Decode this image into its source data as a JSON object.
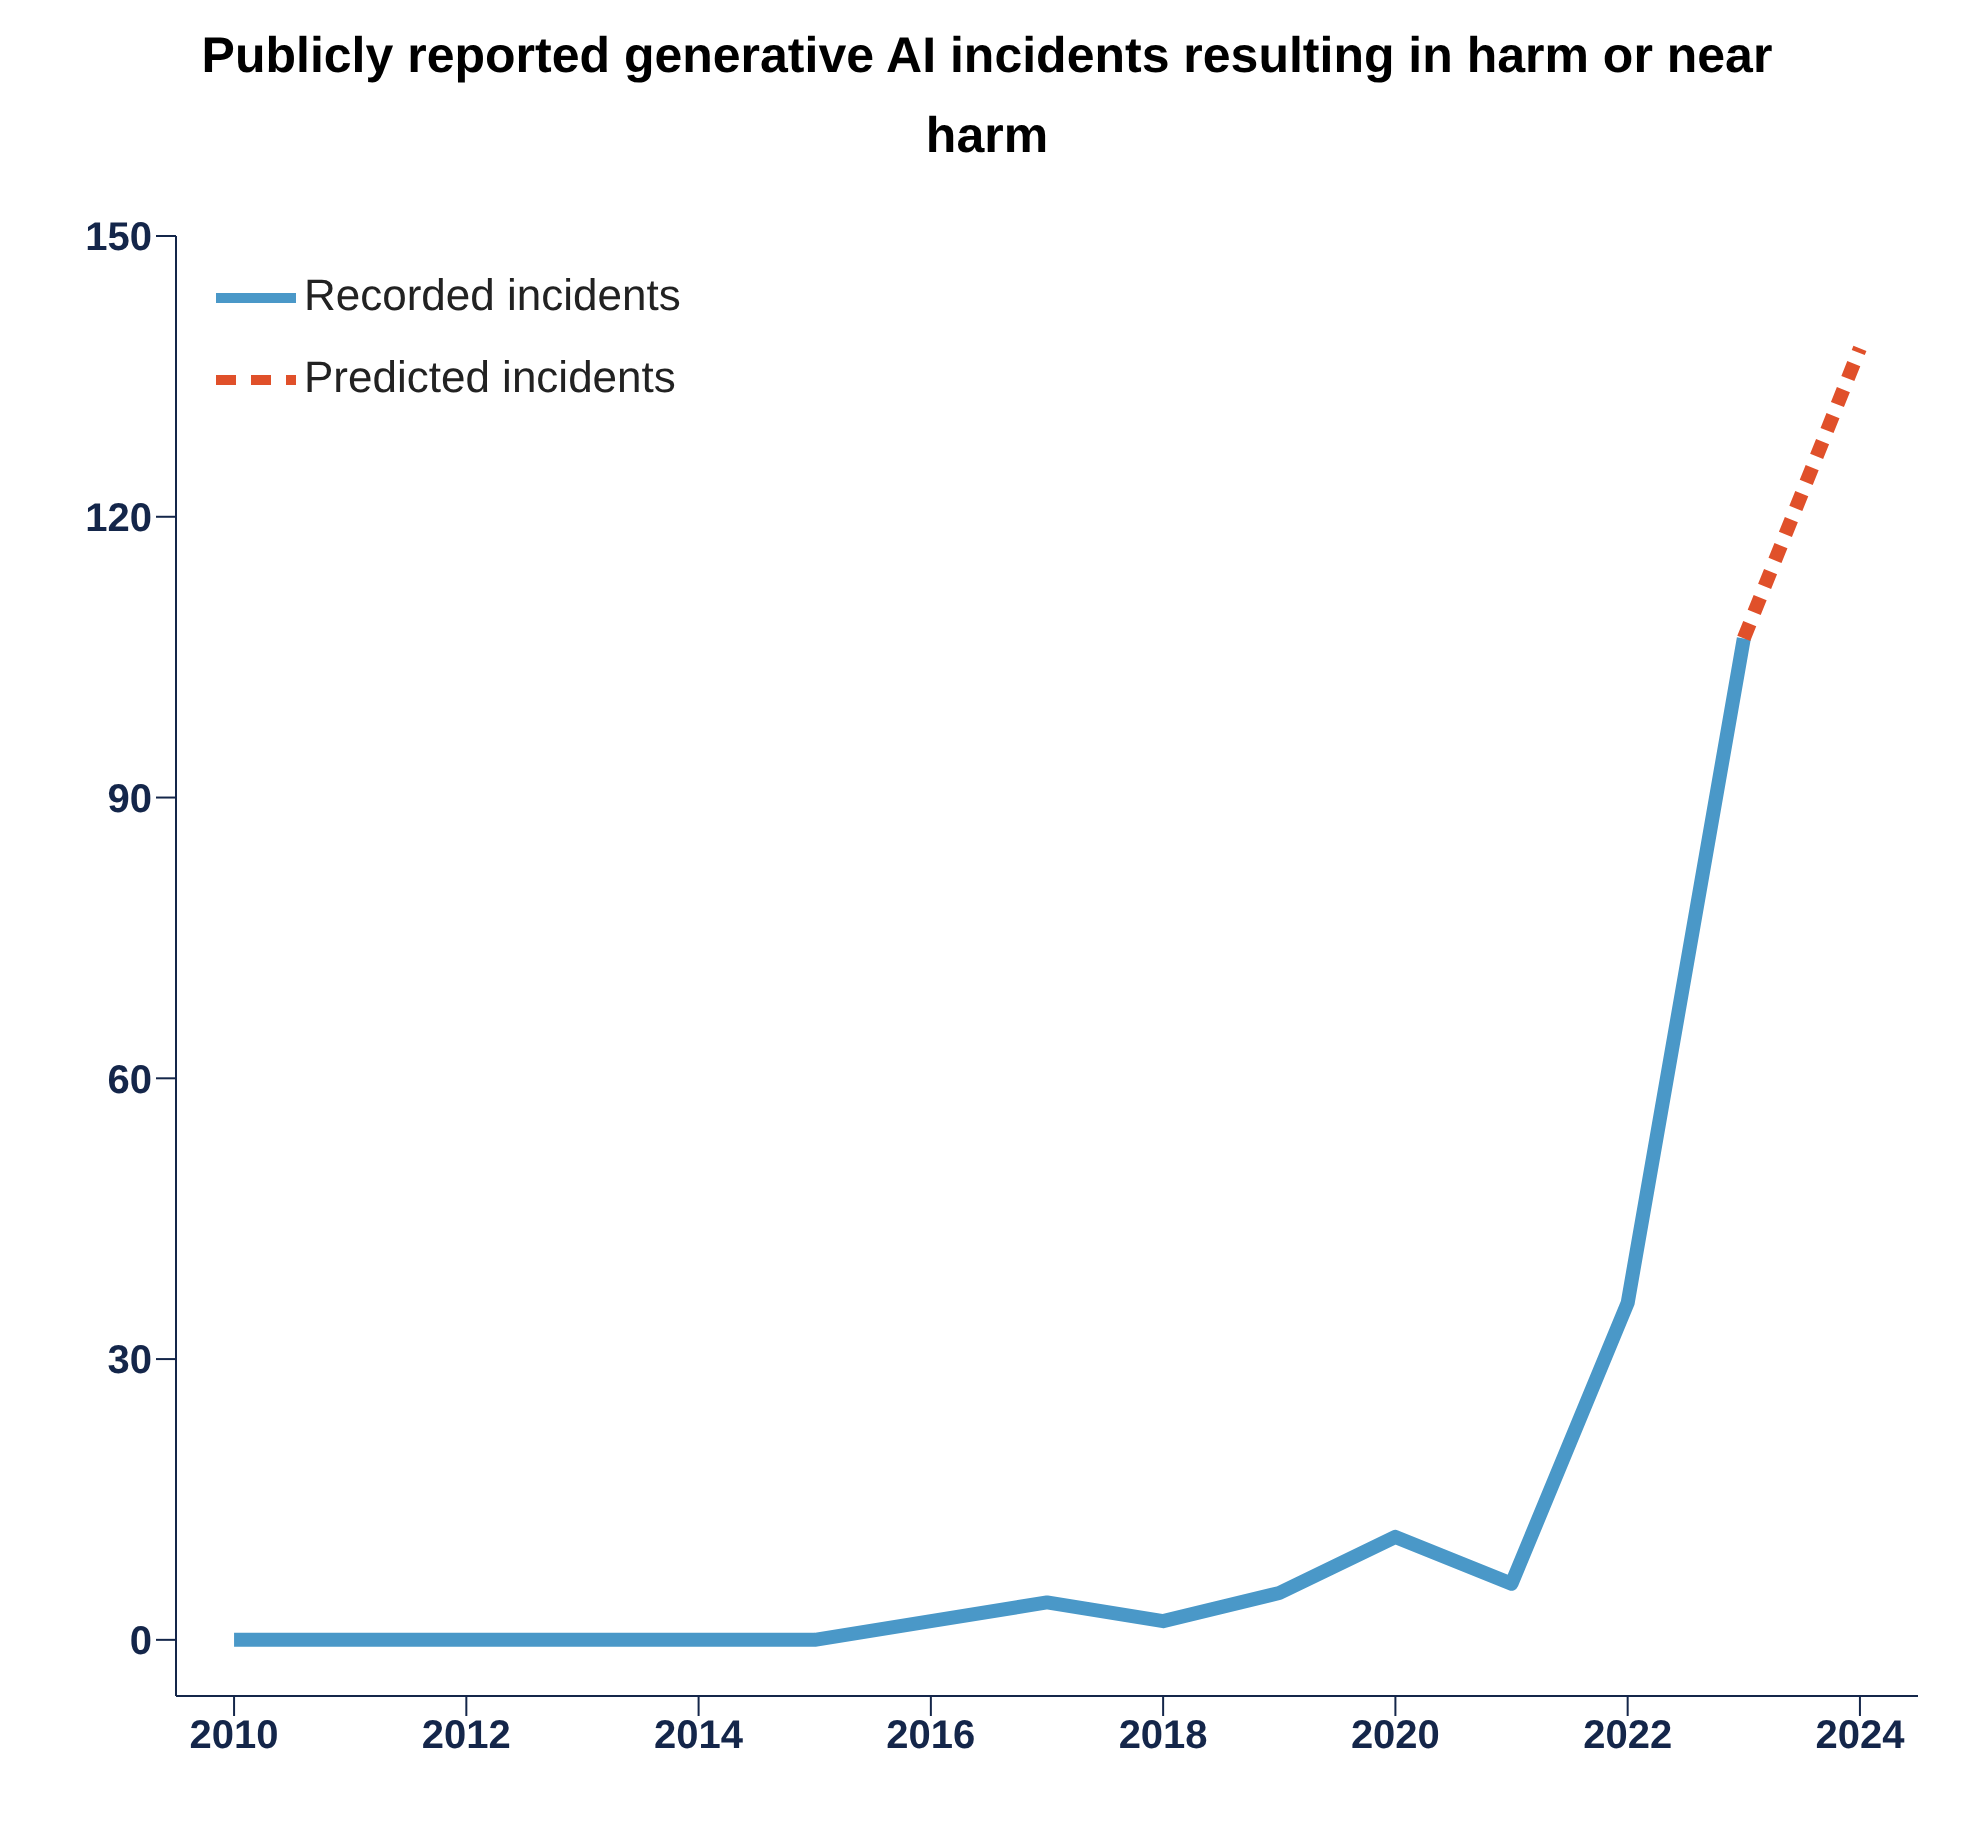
{
  "chart_data": {
    "type": "line",
    "title": "Publicly reported generative AI incidents resulting in harm or near harm",
    "series": [
      {
        "name": "Recorded incidents",
        "color": "#4a98c8",
        "line_style": "solid",
        "x": [
          2010,
          2011,
          2012,
          2013,
          2014,
          2015,
          2016,
          2017,
          2018,
          2019,
          2020,
          2021,
          2022,
          2023
        ],
        "values": [
          0,
          0,
          0,
          0,
          0,
          0,
          2,
          4,
          2,
          5,
          11,
          6,
          36,
          107
        ]
      },
      {
        "name": "Predicted incidents",
        "color": "#e0502a",
        "line_style": "dashed",
        "x": [
          2023,
          2024
        ],
        "values": [
          107,
          138
        ]
      }
    ],
    "xlim": [
      2009.5,
      2024.5
    ],
    "xticks": [
      2010,
      2012,
      2014,
      2016,
      2018,
      2020,
      2022,
      2024
    ],
    "ylim": [
      -6,
      150
    ],
    "yticks": [
      0,
      30,
      60,
      90,
      120,
      150
    ],
    "grid": false,
    "legend": "top left",
    "marker": "none"
  }
}
